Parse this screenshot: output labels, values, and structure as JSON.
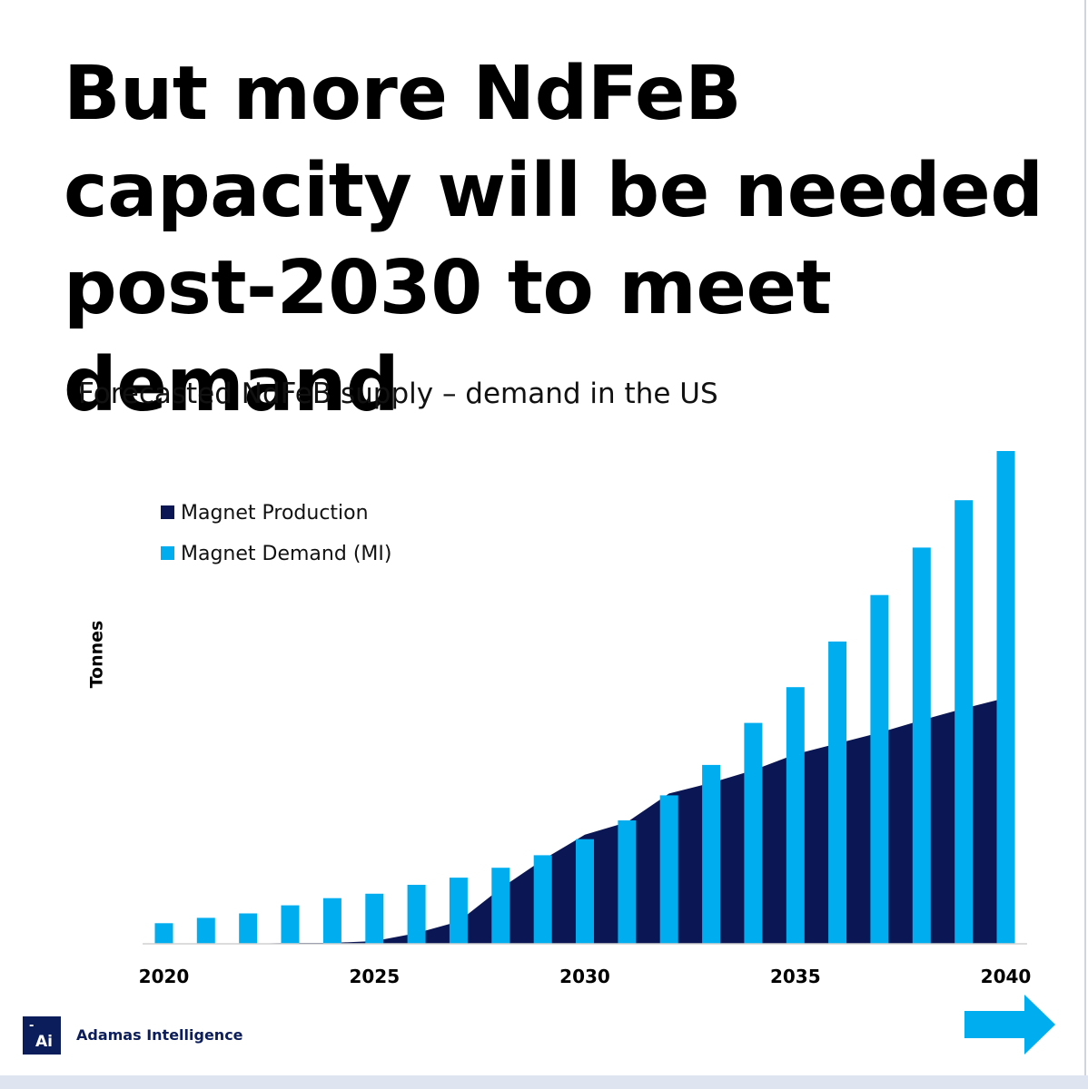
{
  "headline": "But more NdFeB capacity will be needed post-2030 to meet demand",
  "brand": {
    "logo_dash": "-",
    "logo_text": "Ai",
    "name": "Adamas Intelligence"
  },
  "colors": {
    "production": "#0b1654",
    "demand": "#00aeef",
    "text": "#000000"
  },
  "icons": {
    "next": "right-arrow-icon"
  },
  "chart_data": {
    "type": "bar",
    "title": "Forecasted NdFeB supply – demand in the US",
    "ylabel": "Tonnes",
    "xlabel": "",
    "x": [
      2020,
      2021,
      2022,
      2023,
      2024,
      2025,
      2026,
      2027,
      2028,
      2029,
      2030,
      2031,
      2032,
      2033,
      2034,
      2035,
      2036,
      2037,
      2038,
      2039,
      2040
    ],
    "xticks": [
      "2020",
      "2025",
      "2030",
      "2035",
      "2040"
    ],
    "ylim": [
      0,
      55
    ],
    "legend_position": "top-left",
    "series": [
      {
        "name": "Magnet Production",
        "kind": "area",
        "values": [
          0,
          0,
          0,
          0.1,
          0.1,
          0.3,
          1.2,
          2.5,
          6.2,
          9.4,
          12.2,
          13.6,
          16.8,
          18.0,
          19.4,
          21.2,
          22.4,
          23.6,
          25.0,
          26.3,
          27.5
        ]
      },
      {
        "name": "Magnet Demand (MI)",
        "kind": "bar",
        "values": [
          2.3,
          2.9,
          3.4,
          4.3,
          5.1,
          5.6,
          6.6,
          7.4,
          8.5,
          9.9,
          11.7,
          13.8,
          16.6,
          20.0,
          24.7,
          28.7,
          33.8,
          39.0,
          44.3,
          49.6,
          55.1
        ]
      }
    ]
  }
}
